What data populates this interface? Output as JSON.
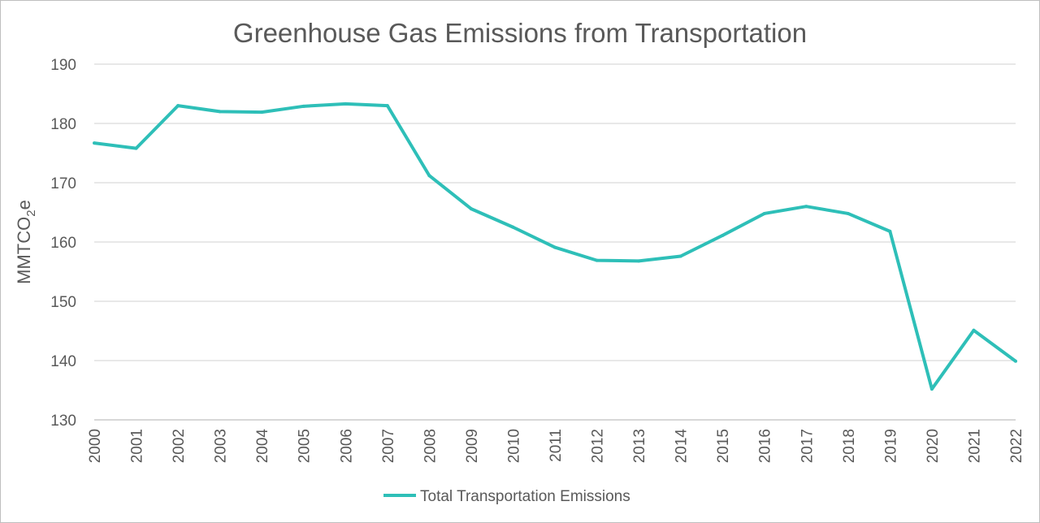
{
  "chart_data": {
    "type": "line",
    "title": "Greenhouse Gas Emissions from Transportation",
    "ylabel": "MMTCO2e",
    "ylabel_parts": {
      "main": "MMTCO",
      "sub": "2",
      "tail": "e"
    },
    "xlabel": "",
    "ylim": [
      130,
      190
    ],
    "yticks": [
      130,
      140,
      150,
      160,
      170,
      180,
      190
    ],
    "grid": true,
    "legend_position": "bottom",
    "categories": [
      "2000",
      "2001",
      "2002",
      "2003",
      "2004",
      "2005",
      "2006",
      "2007",
      "2008",
      "2009",
      "2010",
      "2011",
      "2012",
      "2013",
      "2014",
      "2015",
      "2016",
      "2017",
      "2018",
      "2019",
      "2020",
      "2021",
      "2022"
    ],
    "series": [
      {
        "name": "Total Transportation Emissions",
        "color": "#2ebfb8",
        "values": [
          176.7,
          175.8,
          183.0,
          182.0,
          181.9,
          182.9,
          183.3,
          183.0,
          171.2,
          165.6,
          162.5,
          159.1,
          156.9,
          156.8,
          157.6,
          161.1,
          164.8,
          166.0,
          164.8,
          161.8,
          135.2,
          145.1,
          139.9
        ]
      }
    ]
  }
}
